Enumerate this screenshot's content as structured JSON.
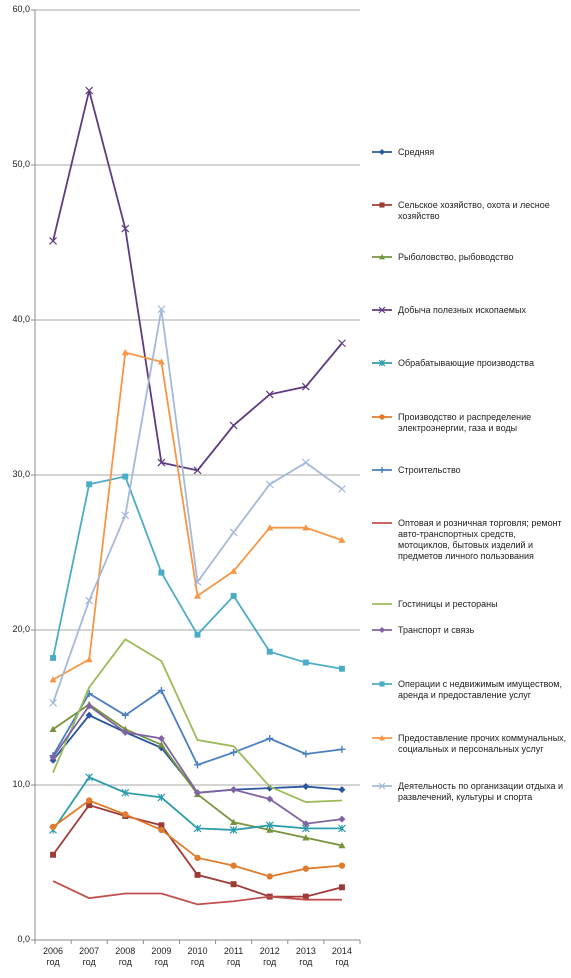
{
  "chart_data": {
    "type": "line",
    "categories": [
      "2006 год",
      "2007 год",
      "2008 год",
      "2009 год",
      "2010 год",
      "2011 год",
      "2012 год",
      "2013 год",
      "2014 год"
    ],
    "ylim": [
      0,
      60
    ],
    "yticks": [
      {
        "value": 0,
        "label": "0,0"
      },
      {
        "value": 10,
        "label": "10,0"
      },
      {
        "value": 20,
        "label": "20,0"
      },
      {
        "value": 30,
        "label": "30,0"
      },
      {
        "value": 40,
        "label": "40,0"
      },
      {
        "value": 50,
        "label": "50,0"
      },
      {
        "value": 60,
        "label": "60,0"
      }
    ],
    "grid": true,
    "legend": "right",
    "series": [
      {
        "name": "Средняя",
        "color": "#2a569e",
        "marker": "diamond",
        "values": [
          11.6,
          14.5,
          13.4,
          12.4,
          9.5,
          9.7,
          9.8,
          9.9,
          9.7
        ]
      },
      {
        "name": "Сельское хозяйство, охота и лесное хозяйство",
        "color": "#9e3b38",
        "marker": "square",
        "values": [
          5.5,
          8.7,
          8.0,
          7.4,
          4.2,
          3.6,
          2.8,
          2.8,
          3.4
        ]
      },
      {
        "name": "Рыболовство, рыбоводство",
        "color": "#77933c",
        "marker": "triangle",
        "values": [
          13.6,
          15.2,
          13.6,
          12.6,
          9.4,
          7.6,
          7.1,
          6.6,
          6.1
        ]
      },
      {
        "name": "Добыча полезных ископаемых",
        "color": "#5f3b7f",
        "marker": "x",
        "values": [
          45.1,
          54.8,
          45.9,
          30.8,
          30.3,
          33.2,
          35.2,
          35.7,
          38.5
        ]
      },
      {
        "name": "Обрабатывающие производства",
        "color": "#2f9cab",
        "marker": "asterisk",
        "values": [
          7.1,
          10.5,
          9.5,
          9.2,
          7.2,
          7.1,
          7.4,
          7.2,
          7.2
        ]
      },
      {
        "name": "Производство и распределение электроэнергии,  газа и воды",
        "color": "#e07b2b",
        "marker": "circle",
        "values": [
          7.3,
          9.0,
          8.1,
          7.1,
          5.3,
          4.8,
          4.1,
          4.6,
          4.8
        ]
      },
      {
        "name": "Строительство",
        "color": "#4a7fc0",
        "marker": "plus",
        "values": [
          11.9,
          15.9,
          14.5,
          16.1,
          11.3,
          12.1,
          13.0,
          12.0,
          12.3
        ]
      },
      {
        "name": "Оптовая и розничная торговля; ремонт авто-транспортных средств, мотоциклов, бытовых изделий и предметов личного пользования",
        "color": "#c0504d",
        "marker": "none",
        "values": [
          3.8,
          2.7,
          3.0,
          3.0,
          2.3,
          2.5,
          2.8,
          2.6,
          2.6
        ]
      },
      {
        "name": "Гостиницы и рестораны",
        "color": "#9bbb59",
        "marker": "none",
        "values": [
          10.8,
          16.3,
          19.4,
          18.0,
          12.9,
          12.5,
          9.9,
          8.9,
          9.0
        ]
      },
      {
        "name": "Транспорт и связь",
        "color": "#8064a2",
        "marker": "diamond",
        "values": [
          11.8,
          15.1,
          13.4,
          13.0,
          9.5,
          9.7,
          9.1,
          7.5,
          7.8
        ]
      },
      {
        "name": "Операции с недвижимым имуществом, аренда и предоставление услуг",
        "color": "#4bacc6",
        "marker": "square",
        "values": [
          18.2,
          29.4,
          29.9,
          23.7,
          19.7,
          22.2,
          18.6,
          17.9,
          17.5
        ]
      },
      {
        "name": "Предоставление прочих коммунальных, социальных и персональных услуг",
        "color": "#f79646",
        "marker": "triangle",
        "values": [
          16.8,
          18.1,
          37.9,
          37.3,
          22.2,
          23.8,
          26.6,
          26.6,
          25.8
        ]
      },
      {
        "name": "Деятельность по организации отдыха и развлечений, культуры и спорта",
        "color": "#a5b9d9",
        "marker": "x",
        "values": [
          15.3,
          21.9,
          27.4,
          40.7,
          23.1,
          26.3,
          29.4,
          30.8,
          29.1
        ]
      }
    ]
  }
}
